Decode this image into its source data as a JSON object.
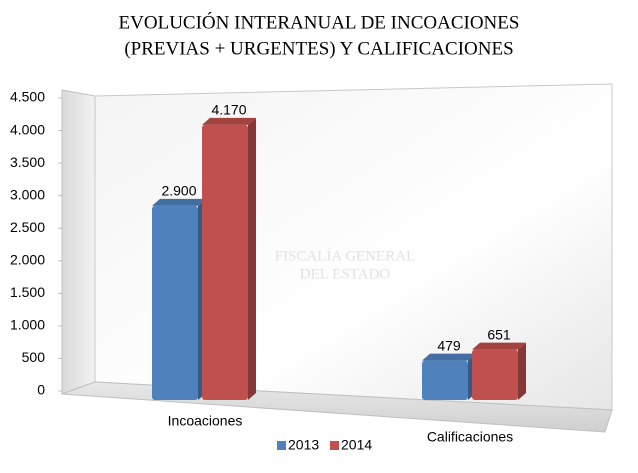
{
  "chart_data": {
    "type": "bar3d",
    "title": [
      "EVOLUCIÓN INTERANUAL DE INCOACIONES",
      "(PREVIAS + URGENTES) Y CALIFICACIONES"
    ],
    "watermark": [
      "FISCALÍA GENERAL",
      "DEL ESTADO"
    ],
    "categories": [
      "Incoaciones",
      "Calificaciones"
    ],
    "series": [
      {
        "name": "2013",
        "color": "#4f81bd",
        "values": [
          2900,
          479
        ],
        "value_labels": [
          "2.900",
          "479"
        ]
      },
      {
        "name": "2014",
        "color": "#c0504d",
        "values": [
          4170,
          651
        ],
        "value_labels": [
          "4.170",
          "651"
        ]
      }
    ],
    "ylim": [
      0,
      4500
    ],
    "yticks": [
      0,
      500,
      {
        "value": 1000,
        "label": "1.000"
      },
      {
        "value": 1500,
        "label": "1.500"
      },
      {
        "value": 2000,
        "label": "2.000"
      },
      {
        "value": 2500,
        "label": "2.500"
      },
      {
        "value": 3000,
        "label": "3.000"
      },
      {
        "value": 3500,
        "label": "3.500"
      },
      {
        "value": 4000,
        "label": "4.000"
      },
      {
        "value": 4500,
        "label": "4.500"
      }
    ],
    "legend": "bottom"
  }
}
